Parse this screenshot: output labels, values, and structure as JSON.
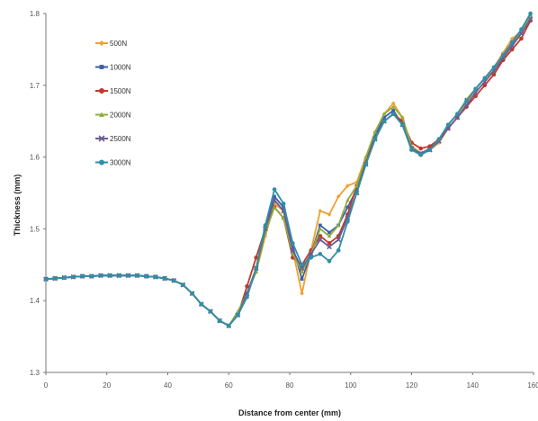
{
  "chart_data": {
    "type": "line",
    "xlabel": "Distance from center (mm)",
    "ylabel": "Thickness (mm)",
    "xlim": [
      0,
      160
    ],
    "ylim": [
      1.3,
      1.8
    ],
    "x_ticks": [
      0,
      20,
      40,
      60,
      80,
      100,
      120,
      140,
      160
    ],
    "y_ticks": [
      "1.3",
      "1.4",
      "1.5",
      "1.6",
      "1.7",
      "1.8"
    ],
    "grid": false,
    "legend_position": "top-left",
    "series": [
      {
        "name": "500N",
        "color": "#f0a030",
        "marker": "diamond",
        "x": [
          0,
          3,
          6,
          9,
          12,
          15,
          18,
          21,
          24,
          27,
          30,
          33,
          36,
          39,
          42,
          45,
          48,
          51,
          54,
          57,
          60,
          63,
          66,
          69,
          72,
          75,
          78,
          81,
          84,
          87,
          90,
          93,
          96,
          99,
          102,
          105,
          108,
          111,
          114,
          117,
          120,
          123,
          126,
          129,
          132,
          135,
          138,
          141,
          144,
          147,
          150,
          153,
          156,
          159
        ],
        "y": [
          1.43,
          1.431,
          1.432,
          1.433,
          1.434,
          1.434,
          1.435,
          1.435,
          1.435,
          1.435,
          1.435,
          1.434,
          1.433,
          1.431,
          1.428,
          1.422,
          1.41,
          1.395,
          1.385,
          1.372,
          1.365,
          1.38,
          1.41,
          1.44,
          1.49,
          1.535,
          1.525,
          1.47,
          1.41,
          1.47,
          1.525,
          1.52,
          1.545,
          1.56,
          1.565,
          1.6,
          1.635,
          1.66,
          1.675,
          1.655,
          1.615,
          1.605,
          1.61,
          1.62,
          1.64,
          1.655,
          1.675,
          1.695,
          1.71,
          1.725,
          1.745,
          1.765,
          1.775,
          1.795
        ]
      },
      {
        "name": "1000N",
        "color": "#3b5fa8",
        "marker": "square",
        "x": [
          0,
          3,
          6,
          9,
          12,
          15,
          18,
          21,
          24,
          27,
          30,
          33,
          36,
          39,
          42,
          45,
          48,
          51,
          54,
          57,
          60,
          63,
          66,
          69,
          72,
          75,
          78,
          81,
          84,
          87,
          90,
          93,
          96,
          99,
          102,
          105,
          108,
          111,
          114,
          117,
          120,
          123,
          126,
          129,
          132,
          135,
          138,
          141,
          144,
          147,
          150,
          153,
          156,
          159
        ],
        "y": [
          1.43,
          1.431,
          1.432,
          1.433,
          1.434,
          1.434,
          1.435,
          1.435,
          1.435,
          1.435,
          1.435,
          1.434,
          1.433,
          1.431,
          1.428,
          1.422,
          1.41,
          1.395,
          1.385,
          1.372,
          1.365,
          1.38,
          1.41,
          1.445,
          1.5,
          1.545,
          1.53,
          1.475,
          1.43,
          1.465,
          1.505,
          1.495,
          1.505,
          1.53,
          1.555,
          1.595,
          1.63,
          1.655,
          1.665,
          1.645,
          1.61,
          1.605,
          1.612,
          1.625,
          1.645,
          1.66,
          1.68,
          1.695,
          1.71,
          1.725,
          1.74,
          1.76,
          1.775,
          1.795
        ]
      },
      {
        "name": "1500N",
        "color": "#c0392b",
        "marker": "circle",
        "x": [
          0,
          3,
          6,
          9,
          12,
          15,
          18,
          21,
          24,
          27,
          30,
          33,
          36,
          39,
          42,
          45,
          48,
          51,
          54,
          57,
          60,
          63,
          66,
          69,
          72,
          75,
          78,
          81,
          84,
          87,
          90,
          93,
          96,
          99,
          102,
          105,
          108,
          111,
          114,
          117,
          120,
          123,
          126,
          129,
          132,
          135,
          138,
          141,
          144,
          147,
          150,
          153,
          156,
          159
        ],
        "y": [
          1.43,
          1.431,
          1.432,
          1.433,
          1.434,
          1.434,
          1.435,
          1.435,
          1.435,
          1.435,
          1.435,
          1.434,
          1.433,
          1.431,
          1.428,
          1.422,
          1.41,
          1.395,
          1.385,
          1.372,
          1.365,
          1.38,
          1.42,
          1.46,
          1.5,
          1.53,
          1.515,
          1.46,
          1.45,
          1.47,
          1.49,
          1.48,
          1.49,
          1.52,
          1.56,
          1.595,
          1.625,
          1.65,
          1.66,
          1.65,
          1.62,
          1.612,
          1.615,
          1.625,
          1.64,
          1.655,
          1.67,
          1.685,
          1.7,
          1.715,
          1.735,
          1.75,
          1.765,
          1.79
        ]
      },
      {
        "name": "2000N",
        "color": "#8fae3a",
        "marker": "triangle",
        "x": [
          0,
          3,
          6,
          9,
          12,
          15,
          18,
          21,
          24,
          27,
          30,
          33,
          36,
          39,
          42,
          45,
          48,
          51,
          54,
          57,
          60,
          63,
          66,
          69,
          72,
          75,
          78,
          81,
          84,
          87,
          90,
          93,
          96,
          99,
          102,
          105,
          108,
          111,
          114,
          117,
          120,
          123,
          126,
          129,
          132,
          135,
          138,
          141,
          144,
          147,
          150,
          153,
          156,
          159
        ],
        "y": [
          1.43,
          1.431,
          1.432,
          1.433,
          1.434,
          1.434,
          1.435,
          1.435,
          1.435,
          1.435,
          1.435,
          1.434,
          1.433,
          1.431,
          1.428,
          1.422,
          1.41,
          1.395,
          1.385,
          1.372,
          1.365,
          1.385,
          1.41,
          1.44,
          1.495,
          1.53,
          1.515,
          1.465,
          1.44,
          1.465,
          1.5,
          1.49,
          1.505,
          1.54,
          1.56,
          1.6,
          1.635,
          1.66,
          1.67,
          1.655,
          1.615,
          1.605,
          1.61,
          1.625,
          1.645,
          1.66,
          1.68,
          1.695,
          1.71,
          1.72,
          1.74,
          1.755,
          1.775,
          1.795
        ]
      },
      {
        "name": "2500N",
        "color": "#6b5b95",
        "marker": "cross",
        "x": [
          0,
          3,
          6,
          9,
          12,
          15,
          18,
          21,
          24,
          27,
          30,
          33,
          36,
          39,
          42,
          45,
          48,
          51,
          54,
          57,
          60,
          63,
          66,
          69,
          72,
          75,
          78,
          81,
          84,
          87,
          90,
          93,
          96,
          99,
          102,
          105,
          108,
          111,
          114,
          117,
          120,
          123,
          126,
          129,
          132,
          135,
          138,
          141,
          144,
          147,
          150,
          153,
          156,
          159
        ],
        "y": [
          1.43,
          1.431,
          1.432,
          1.433,
          1.434,
          1.434,
          1.435,
          1.435,
          1.435,
          1.435,
          1.435,
          1.434,
          1.433,
          1.431,
          1.428,
          1.422,
          1.41,
          1.395,
          1.385,
          1.372,
          1.365,
          1.38,
          1.41,
          1.445,
          1.5,
          1.54,
          1.525,
          1.47,
          1.445,
          1.465,
          1.485,
          1.475,
          1.485,
          1.515,
          1.55,
          1.59,
          1.625,
          1.65,
          1.66,
          1.645,
          1.612,
          1.605,
          1.61,
          1.622,
          1.64,
          1.655,
          1.672,
          1.69,
          1.705,
          1.72,
          1.738,
          1.755,
          1.772,
          1.792
        ]
      },
      {
        "name": "3000N",
        "color": "#2e8fa8",
        "marker": "circle",
        "x": [
          0,
          3,
          6,
          9,
          12,
          15,
          18,
          21,
          24,
          27,
          30,
          33,
          36,
          39,
          42,
          45,
          48,
          51,
          54,
          57,
          60,
          63,
          66,
          69,
          72,
          75,
          78,
          81,
          84,
          87,
          90,
          93,
          96,
          99,
          102,
          105,
          108,
          111,
          114,
          117,
          120,
          123,
          126,
          129,
          132,
          135,
          138,
          141,
          144,
          147,
          150,
          153,
          156,
          159
        ],
        "y": [
          1.43,
          1.431,
          1.432,
          1.433,
          1.434,
          1.434,
          1.435,
          1.435,
          1.435,
          1.435,
          1.435,
          1.434,
          1.433,
          1.431,
          1.428,
          1.422,
          1.41,
          1.395,
          1.385,
          1.372,
          1.365,
          1.38,
          1.405,
          1.445,
          1.505,
          1.555,
          1.535,
          1.48,
          1.45,
          1.46,
          1.465,
          1.455,
          1.47,
          1.51,
          1.55,
          1.59,
          1.625,
          1.65,
          1.66,
          1.645,
          1.61,
          1.603,
          1.61,
          1.625,
          1.645,
          1.66,
          1.678,
          1.695,
          1.71,
          1.725,
          1.742,
          1.76,
          1.778,
          1.8
        ]
      }
    ]
  }
}
